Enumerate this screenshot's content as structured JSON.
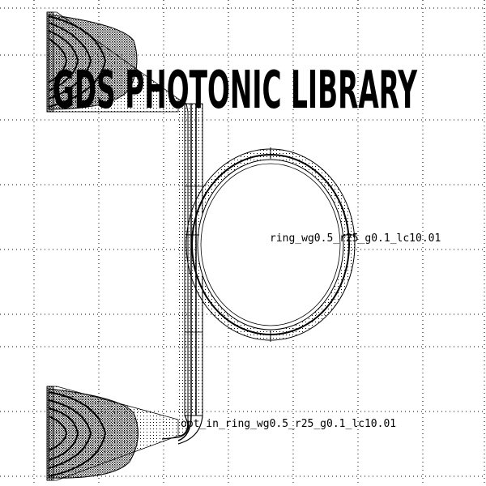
{
  "title": "GDS PHOTONIC LIBRARY",
  "labels": {
    "ring": "ring_wg0.5_r25_g0.1_lc10.01",
    "port": "opt_in_ring_wg0.5_r25_g0.1_lc10.01"
  },
  "colors": {
    "background": "#ffffff",
    "ink": "#000000",
    "grid": "#000000"
  },
  "grid": {
    "visible": true,
    "style": "dotted"
  }
}
